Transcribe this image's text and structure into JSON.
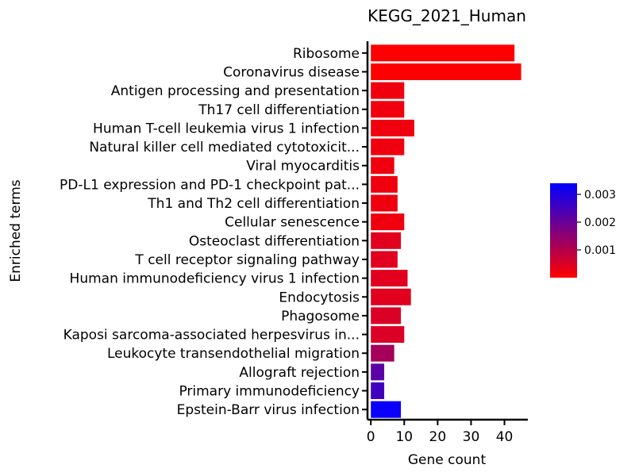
{
  "chart_data": {
    "type": "bar",
    "orientation": "horizontal",
    "title": "KEGG_2021_Human",
    "xlabel": "Gene count",
    "ylabel": "Enriched terms",
    "categories": [
      "Ribosome",
      "Coronavirus disease",
      "Antigen processing and presentation",
      "Th17 cell differentiation",
      "Human T-cell leukemia virus 1 infection",
      "Natural killer cell mediated cytotoxicit...",
      "Viral myocarditis",
      "PD-L1 expression and PD-1 checkpoint pat...",
      "Th1 and Th2 cell differentiation",
      "Cellular senescence",
      "Osteoclast differentiation",
      "T cell receptor signaling pathway",
      "Human immunodeficiency virus 1 infection",
      "Endocytosis",
      "Phagosome",
      "Kaposi sarcoma-associated herpesvirus in...",
      "Leukocyte transendothelial migration",
      "Allograft rejection",
      "Primary immunodeficiency",
      "Epstein-Barr virus infection"
    ],
    "values": [
      43,
      45,
      10,
      10,
      13,
      10,
      7,
      8,
      8,
      10,
      9,
      8,
      11,
      12,
      9,
      10,
      7,
      4,
      4,
      9
    ],
    "color_values": [
      1e-05,
      1e-05,
      0.0002,
      0.0002,
      0.0002,
      0.0002,
      0.0002,
      0.0002,
      0.0002,
      0.0002,
      0.0004,
      0.0004,
      0.0004,
      0.0004,
      0.0005,
      0.0005,
      0.0012,
      0.0022,
      0.0025,
      0.0033
    ],
    "xlim": [
      -1,
      47
    ],
    "xticks": [
      0,
      10,
      20,
      30,
      40
    ],
    "colorbar": {
      "range": [
        0,
        0.0034
      ],
      "ticks": [
        0.001,
        0.002,
        0.003
      ],
      "tick_labels": [
        "0.001",
        "0.002",
        "0.003"
      ],
      "color_low": "#ff0000",
      "color_high": "#0000ff",
      "placement": "right"
    },
    "grid": false,
    "legend": "colorbar-right"
  }
}
